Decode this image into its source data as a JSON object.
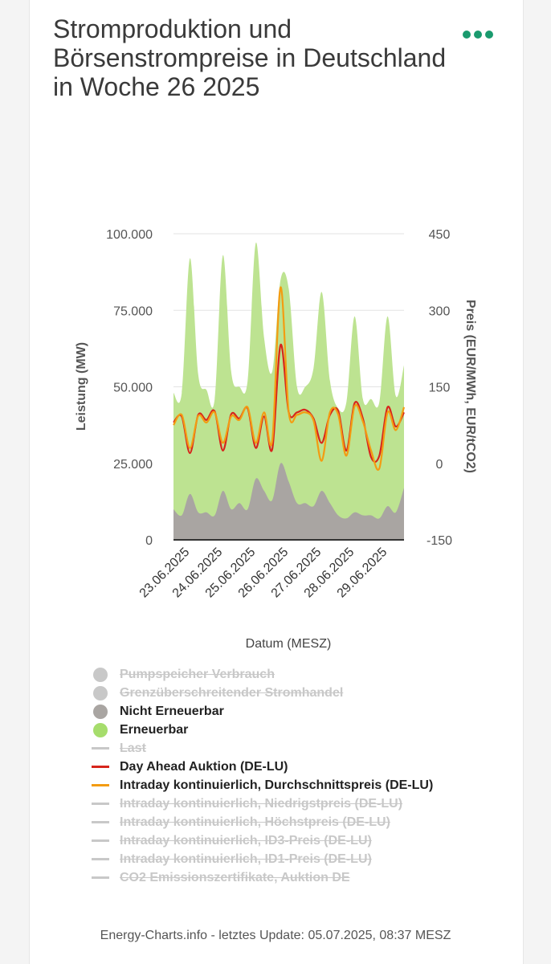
{
  "title": "Stromproduktion und Börsenstrompreise in Deutschland in Woche 26 2025",
  "footer": "Energy-Charts.info - letztes Update: 05.07.2025, 08:37 MESZ",
  "chart_data": {
    "type": "area",
    "x": [
      "23.06.2025 00:00",
      "23.06.2025 06:00",
      "23.06.2025 12:00",
      "23.06.2025 18:00",
      "24.06.2025 00:00",
      "24.06.2025 06:00",
      "24.06.2025 12:00",
      "24.06.2025 18:00",
      "25.06.2025 00:00",
      "25.06.2025 06:00",
      "25.06.2025 12:00",
      "25.06.2025 18:00",
      "26.06.2025 00:00",
      "26.06.2025 06:00",
      "26.06.2025 12:00",
      "26.06.2025 18:00",
      "27.06.2025 00:00",
      "27.06.2025 06:00",
      "27.06.2025 12:00",
      "27.06.2025 18:00",
      "28.06.2025 00:00",
      "28.06.2025 06:00",
      "28.06.2025 12:00",
      "28.06.2025 18:00",
      "29.06.2025 00:00",
      "29.06.2025 06:00",
      "29.06.2025 12:00",
      "29.06.2025 18:00",
      "30.06.2025 00:00"
    ],
    "xlabel": "Datum (MESZ)",
    "ylabel_left": "Leistung (MW)",
    "ylabel_right": "Preis (EUR/MWh, EUR/tCO2)",
    "ylim_left": [
      0,
      100000
    ],
    "ylim_right": [
      -150,
      450
    ],
    "yticks_left": [
      "0",
      "25.000",
      "50.000",
      "75.000",
      "100.000"
    ],
    "yticks_right": [
      "-150",
      "0",
      "150",
      "300",
      "450"
    ],
    "xticks": [
      "23.06.2025",
      "24.06.2025",
      "25.06.2025",
      "26.06.2025",
      "27.06.2025",
      "28.06.2025",
      "29.06.2025"
    ],
    "grid": true,
    "series": [
      {
        "name": "Nicht Erneuerbar",
        "axis": "left",
        "kind": "area",
        "color": "#a9a5a2",
        "values": [
          10000,
          8000,
          15000,
          9000,
          9000,
          8000,
          16000,
          10000,
          12000,
          10000,
          20000,
          16000,
          13000,
          25000,
          19000,
          12000,
          12000,
          11000,
          16000,
          12000,
          8000,
          7000,
          9000,
          8000,
          8000,
          7000,
          11000,
          9000,
          17000
        ]
      },
      {
        "name": "Erneuerbar",
        "axis": "left",
        "kind": "area",
        "color": "#bde391",
        "values": [
          38000,
          40000,
          77000,
          45000,
          40000,
          38000,
          77000,
          45000,
          38000,
          42000,
          77000,
          50000,
          42000,
          60000,
          63000,
          38000,
          38000,
          45000,
          65000,
          40000,
          35000,
          38000,
          64000,
          38000,
          38000,
          38000,
          62000,
          38000,
          40000
        ]
      },
      {
        "name": "Day Ahead Auktion (DE-LU)",
        "axis": "right",
        "kind": "line",
        "color": "#d7251c",
        "values": [
          80,
          92,
          20,
          95,
          85,
          102,
          25,
          96,
          88,
          108,
          30,
          92,
          28,
          232,
          100,
          100,
          105,
          88,
          40,
          95,
          103,
          25,
          118,
          88,
          12,
          15,
          110,
          72,
          100
        ]
      },
      {
        "name": "Intraday kontinuierlich, Durchschnittspreis (DE-LU)",
        "axis": "right",
        "kind": "line",
        "color": "#f39c12",
        "values": [
          75,
          95,
          30,
          93,
          80,
          100,
          40,
          92,
          85,
          110,
          40,
          100,
          45,
          345,
          100,
          95,
          100,
          84,
          5,
          100,
          96,
          15,
          112,
          82,
          25,
          -10,
          100,
          65,
          110
        ]
      }
    ]
  },
  "legend": [
    {
      "label": "Pumpspeicher Verbrauch",
      "type": "dot",
      "color": "#c8c8c8",
      "active": false
    },
    {
      "label": "Grenzüberschreitender Stromhandel",
      "type": "dot",
      "color": "#c8c8c8",
      "active": false
    },
    {
      "label": "Nicht Erneuerbar",
      "type": "dot",
      "color": "#a9a5a2",
      "active": true
    },
    {
      "label": "Erneuerbar",
      "type": "dot",
      "color": "#a6dd6c",
      "active": true
    },
    {
      "label": "Last",
      "type": "line",
      "color": "#c8c8c8",
      "active": false
    },
    {
      "label": "Day Ahead Auktion (DE-LU)",
      "type": "line",
      "color": "#d7251c",
      "active": true
    },
    {
      "label": "Intraday kontinuierlich, Durchschnittspreis (DE-LU)",
      "type": "line",
      "color": "#f39c12",
      "active": true
    },
    {
      "label": "Intraday kontinuierlich, Niedrigstpreis (DE-LU)",
      "type": "line",
      "color": "#c8c8c8",
      "active": false
    },
    {
      "label": "Intraday kontinuierlich, Höchstpreis (DE-LU)",
      "type": "line",
      "color": "#c8c8c8",
      "active": false
    },
    {
      "label": "Intraday kontinuierlich, ID3-Preis (DE-LU)",
      "type": "line",
      "color": "#c8c8c8",
      "active": false
    },
    {
      "label": "Intraday kontinuierlich, ID1-Preis (DE-LU)",
      "type": "line",
      "color": "#c8c8c8",
      "active": false
    },
    {
      "label": "CO2 Emissionszertifikate, Auktion DE",
      "type": "line",
      "color": "#c8c8c8",
      "active": false
    }
  ]
}
